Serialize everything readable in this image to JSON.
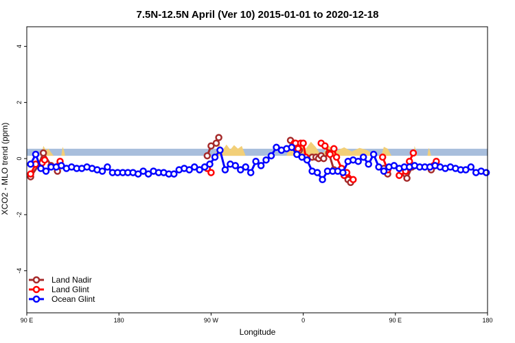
{
  "chart_data": {
    "type": "line",
    "title": "7.5N-12.5N April (Ver 10)   2015-01-01 to 2020-12-18",
    "xlabel": "Longitude",
    "ylabel": "XCO2 - MLO trend (ppm)",
    "xlim": [
      0,
      360
    ],
    "ylim": [
      -5.5,
      4.7
    ],
    "x_ticks": [
      {
        "value": 0,
        "label": "90 E"
      },
      {
        "value": 72,
        "label": "180"
      },
      {
        "value": 144,
        "label": "90 W"
      },
      {
        "value": 216,
        "label": "0"
      },
      {
        "value": 288,
        "label": "90 E"
      },
      {
        "value": 360,
        "label": "180"
      }
    ],
    "y_ticks": [
      {
        "value": -4,
        "label": "-4"
      },
      {
        "value": -2,
        "label": "-2"
      },
      {
        "value": 0,
        "label": "0"
      },
      {
        "value": 2,
        "label": "2"
      },
      {
        "value": 4,
        "label": "4"
      }
    ],
    "band": {
      "ymin": 0.1,
      "ymax": 0.35,
      "color": "#a8bedc"
    },
    "land_fill_color": "#f2cf78",
    "land_segments": [
      {
        "x": [
          11,
          13,
          15,
          17,
          19,
          21
        ],
        "y": [
          0.1,
          0.45,
          0.3,
          0.35,
          0.22,
          0.1
        ]
      },
      {
        "x": [
          27,
          28,
          29,
          30
        ],
        "y": [
          0.1,
          0.42,
          0.3,
          0.1
        ]
      },
      {
        "x": [
          147,
          150,
          153,
          156,
          159,
          162,
          165,
          168,
          171
        ],
        "y": [
          0.1,
          0.55,
          0.3,
          0.5,
          0.32,
          0.48,
          0.35,
          0.45,
          0.1
        ]
      },
      {
        "x": [
          203,
          206,
          210,
          214,
          218,
          222,
          226,
          230
        ],
        "y": [
          0.1,
          0.7,
          0.38,
          0.55,
          0.35,
          0.6,
          0.4,
          0.1
        ]
      },
      {
        "x": [
          230,
          236,
          242,
          248,
          254,
          260,
          266,
          272
        ],
        "y": [
          0.1,
          0.45,
          0.28,
          0.4,
          0.25,
          0.38,
          0.3,
          0.1
        ]
      },
      {
        "x": [
          277,
          279,
          282,
          285
        ],
        "y": [
          0.1,
          0.42,
          0.35,
          0.1
        ]
      },
      {
        "x": [
          302,
          303,
          304,
          305
        ],
        "y": [
          0.1,
          0.45,
          0.3,
          0.1
        ]
      },
      {
        "x": [
          313,
          314,
          315,
          316
        ],
        "y": [
          0.1,
          0.38,
          0.28,
          0.1
        ]
      }
    ],
    "legend_position": "bottom-left",
    "series": [
      {
        "name": "Land Nadir",
        "color": "#a52a2a",
        "segments": [
          {
            "x": [
              3,
              9,
              13,
              19,
              24
            ],
            "y": [
              -0.65,
              -0.25,
              0.2,
              -0.25,
              -0.45
            ]
          },
          {
            "x": [
              141,
              144,
              148,
              150
            ],
            "y": [
              0.1,
              0.45,
              0.55,
              0.75
            ]
          },
          {
            "x": [
              206,
              209,
              213
            ],
            "y": [
              0.65,
              0.45,
              0.3
            ]
          },
          {
            "x": [
              223,
              226,
              228,
              230,
              232,
              236,
              240
            ],
            "y": [
              0.05,
              0.05,
              0.0,
              0.1,
              0.0,
              0.2,
              -0.4
            ]
          },
          {
            "x": [
              249,
              251,
              253
            ],
            "y": [
              -0.55,
              -0.75,
              -0.85
            ]
          },
          {
            "x": [
              279,
              282
            ],
            "y": [
              -0.35,
              -0.55
            ]
          },
          {
            "x": [
              296,
              297,
              301
            ],
            "y": [
              -0.55,
              -0.7,
              -0.3
            ]
          },
          {
            "x": [
              316,
              318
            ],
            "y": [
              -0.4,
              -0.25
            ]
          }
        ]
      },
      {
        "name": "Land Glint",
        "color": "#ff0000",
        "segments": [
          {
            "x": [
              3,
              7,
              12,
              14
            ],
            "y": [
              -0.55,
              -0.2,
              -0.15,
              -0.05
            ]
          },
          {
            "x": [
              25,
              26
            ],
            "y": [
              -0.25,
              -0.1
            ]
          },
          {
            "x": [
              141,
              144
            ],
            "y": [
              -0.35,
              -0.5
            ]
          },
          {
            "x": [
              209,
              210,
              212,
              214,
              216,
              218
            ],
            "y": [
              0.55,
              0.55,
              0.35,
              0.55,
              0.55,
              0.05
            ]
          },
          {
            "x": [
              230,
              233,
              237,
              240,
              242,
              246
            ],
            "y": [
              0.55,
              0.45,
              0.15,
              0.35,
              0.05,
              -0.35
            ]
          },
          {
            "x": [
              248,
              250,
              255
            ],
            "y": [
              -0.6,
              -0.5,
              -0.75
            ]
          },
          {
            "x": [
              278,
              282
            ],
            "y": [
              0.05,
              -0.4
            ]
          },
          {
            "x": [
              291,
              293,
              296,
              299,
              302
            ],
            "y": [
              -0.6,
              -0.45,
              -0.45,
              -0.1,
              0.2
            ]
          },
          {
            "x": [
              318,
              320
            ],
            "y": [
              -0.25,
              -0.1
            ]
          }
        ]
      },
      {
        "name": "Ocean Glint",
        "color": "#0000ff",
        "x": [
          3,
          7,
          11,
          15,
          19,
          23,
          27,
          31,
          35,
          39,
          43,
          47,
          51,
          55,
          59,
          63,
          67,
          71,
          75,
          79,
          83,
          87,
          91,
          95,
          99,
          103,
          107,
          111,
          115,
          119,
          123,
          127,
          131,
          135,
          139,
          143,
          147,
          151,
          155,
          159,
          163,
          167,
          171,
          175,
          179,
          183,
          187,
          191,
          195,
          199,
          203,
          207,
          211,
          215,
          219,
          223,
          227,
          231,
          235,
          239,
          243,
          247,
          251,
          255,
          259,
          263,
          267,
          271,
          275,
          279,
          283,
          287,
          291,
          295,
          299,
          303,
          307,
          311,
          315,
          319,
          323,
          327,
          331,
          335,
          339,
          343,
          347,
          351,
          355,
          359
        ],
        "y": [
          -0.2,
          0.15,
          -0.35,
          -0.45,
          -0.3,
          -0.3,
          -0.25,
          -0.35,
          -0.3,
          -0.35,
          -0.35,
          -0.3,
          -0.35,
          -0.4,
          -0.45,
          -0.3,
          -0.5,
          -0.5,
          -0.5,
          -0.5,
          -0.5,
          -0.55,
          -0.45,
          -0.55,
          -0.45,
          -0.5,
          -0.5,
          -0.55,
          -0.55,
          -0.4,
          -0.35,
          -0.4,
          -0.3,
          -0.4,
          -0.3,
          -0.2,
          0.05,
          0.3,
          -0.4,
          -0.2,
          -0.25,
          -0.4,
          -0.3,
          -0.5,
          -0.1,
          -0.25,
          -0.05,
          0.1,
          0.4,
          0.3,
          0.35,
          0.4,
          0.15,
          0.05,
          -0.05,
          -0.45,
          -0.5,
          -0.75,
          -0.45,
          -0.45,
          -0.45,
          -0.5,
          -0.1,
          -0.05,
          -0.1,
          0.05,
          -0.2,
          0.15,
          -0.3,
          -0.45,
          -0.3,
          -0.25,
          -0.35,
          -0.3,
          -0.3,
          -0.25,
          -0.3,
          -0.3,
          -0.3,
          -0.25,
          -0.3,
          -0.35,
          -0.3,
          -0.35,
          -0.4,
          -0.4,
          -0.3,
          -0.5,
          -0.45,
          -0.5
        ]
      }
    ]
  }
}
